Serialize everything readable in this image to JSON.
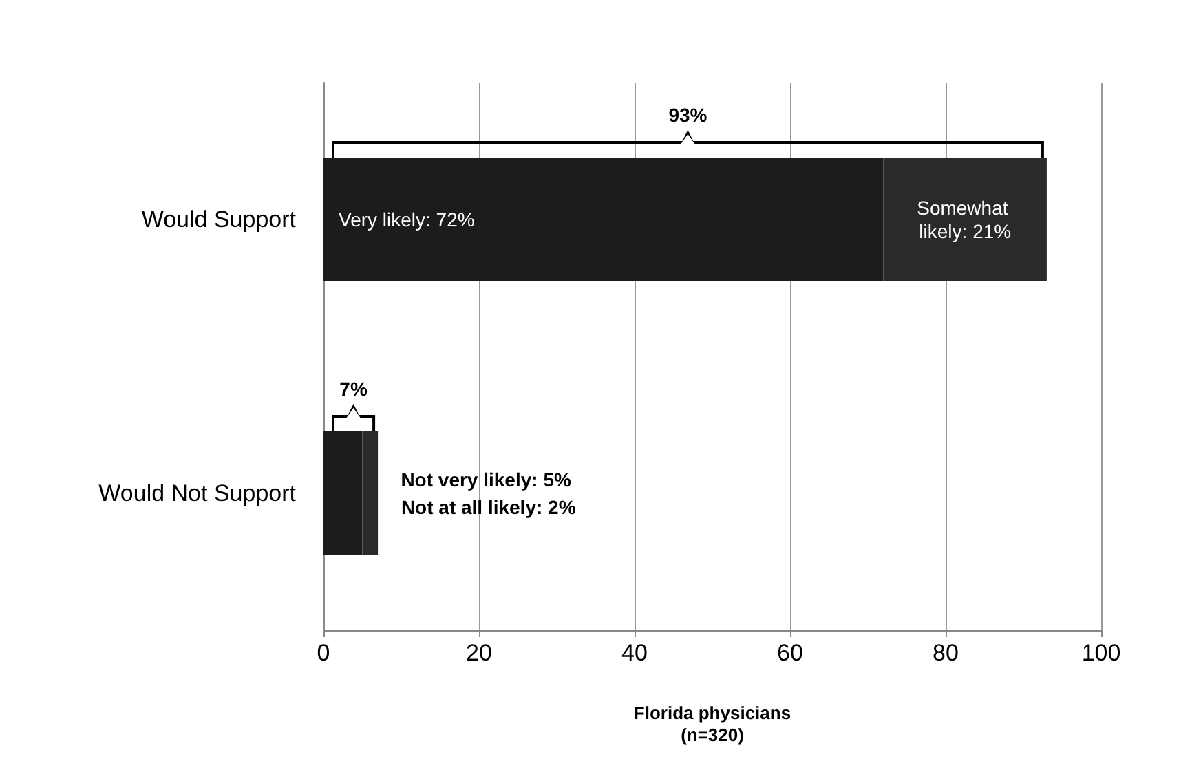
{
  "chart_data": {
    "type": "bar",
    "orientation": "horizontal",
    "stacked": true,
    "xlabel": "Florida physicians\n(n=320)",
    "categories": [
      "Would Support",
      "Would Not Support"
    ],
    "series": [
      {
        "color": "#1c1c1c",
        "values": [
          72,
          5
        ],
        "value_labels": [
          "Very likely: 72%",
          "Not very likely: 5%"
        ]
      },
      {
        "color": "#2a2a2a",
        "values": [
          21,
          2
        ],
        "value_labels": [
          "Somewhat likely: 21%",
          "Not at all likely: 2%"
        ]
      }
    ],
    "totals": [
      "93%",
      "7%"
    ],
    "xlim": [
      0,
      100
    ],
    "xticks": [
      0,
      20,
      40,
      60,
      80,
      100
    ],
    "grid": "x",
    "legend": false
  }
}
